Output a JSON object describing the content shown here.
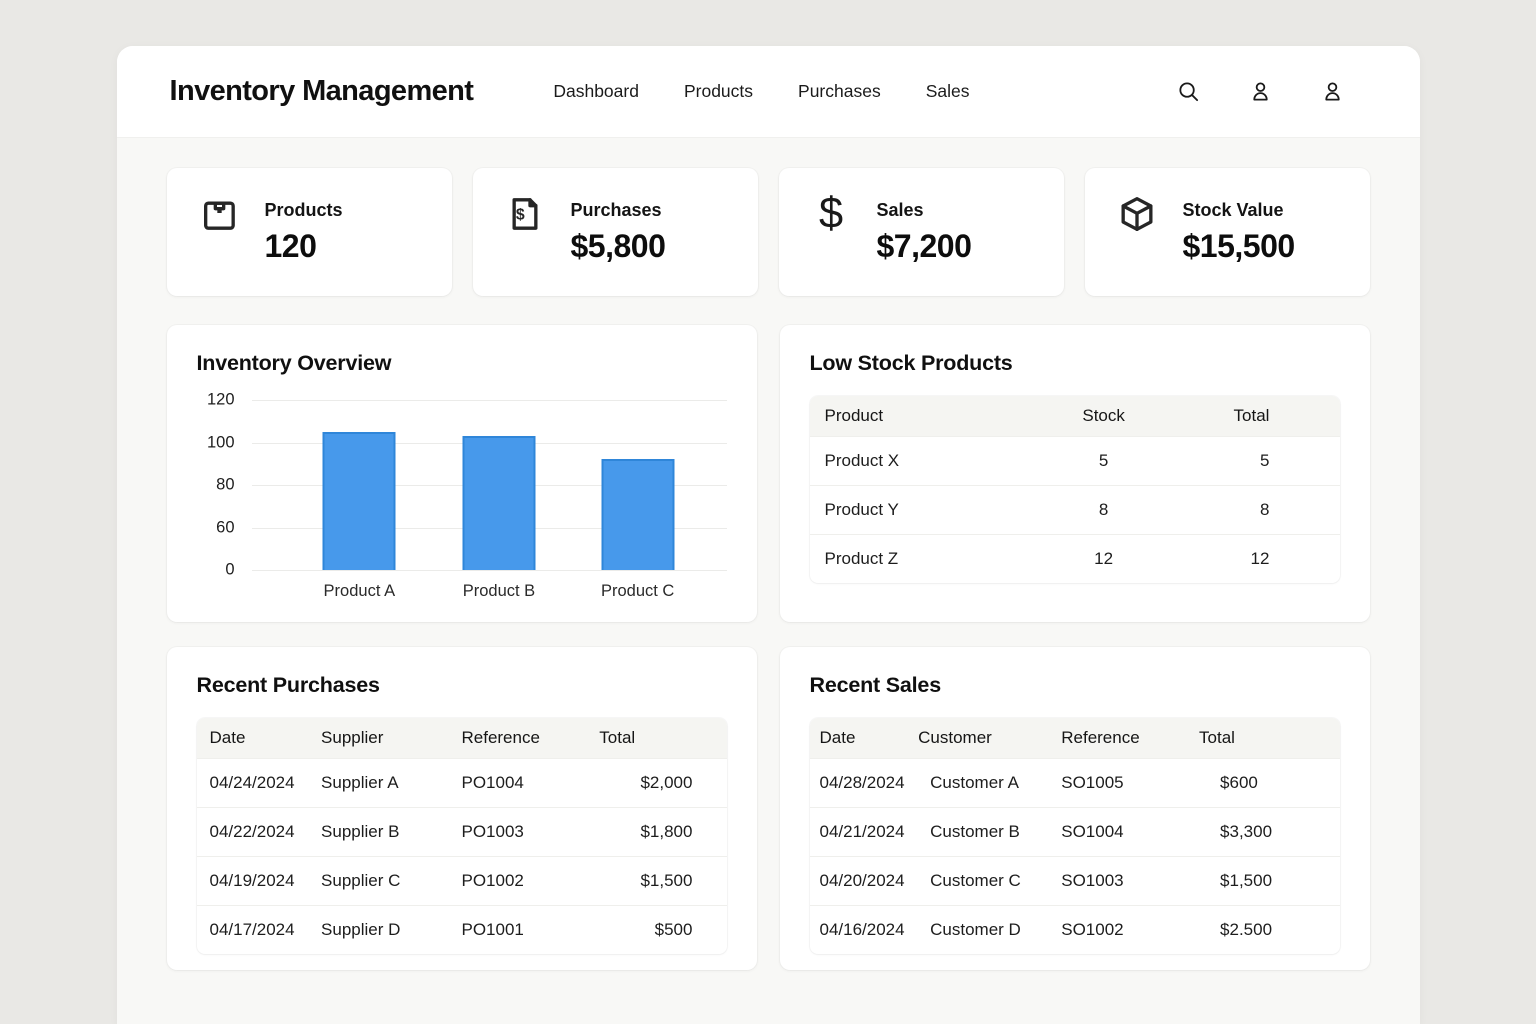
{
  "header": {
    "title": "Inventory Management",
    "nav": [
      {
        "label": "Dashboard"
      },
      {
        "label": "Products"
      },
      {
        "label": "Purchases"
      },
      {
        "label": "Sales"
      }
    ],
    "icons": [
      "search-icon",
      "user-icon",
      "user-icon"
    ]
  },
  "stats": [
    {
      "icon": "package-icon",
      "label": "Products",
      "value": "120"
    },
    {
      "icon": "invoice-icon",
      "label": "Purchases",
      "value": "$5,800"
    },
    {
      "icon": "dollar-icon",
      "label": "Sales",
      "value": "$7,200"
    },
    {
      "icon": "cube-icon",
      "label": "Stock Value",
      "value": "$15,500"
    }
  ],
  "chart_data": {
    "type": "bar",
    "title": "Inventory Overview",
    "categories": [
      "Product A",
      "Product B",
      "Product C"
    ],
    "values": [
      105,
      103,
      92
    ],
    "y_ticks": [
      120,
      100,
      80,
      60,
      0
    ],
    "ylim": [
      0,
      120
    ],
    "grid": true,
    "legend": false,
    "bar_fill": "#4799eb",
    "bar_border": "#2f86d9"
  },
  "sections": {
    "inventory_overview": {
      "title": "Inventory Overview"
    },
    "low_stock": {
      "title": "Low Stock Products",
      "columns": [
        "Product",
        "Stock",
        "Total"
      ],
      "rows": [
        [
          "Product X",
          "5",
          "5"
        ],
        [
          "Product Y",
          "8",
          "8"
        ],
        [
          "Product Z",
          "12",
          "12"
        ]
      ]
    },
    "recent_purchases": {
      "title": "Recent Purchases",
      "columns": [
        "Date",
        "Supplier",
        "Reference",
        "Total"
      ],
      "rows": [
        [
          "04/24/2024",
          "Supplier A",
          "PO1004",
          "$2,000"
        ],
        [
          "04/22/2024",
          "Supplier B",
          "PO1003",
          "$1,800"
        ],
        [
          "04/19/2024",
          "Supplier C",
          "PO1002",
          "$1,500"
        ],
        [
          "04/17/2024",
          "Supplier D",
          "PO1001",
          "$500"
        ]
      ]
    },
    "recent_sales": {
      "title": "Recent Sales",
      "columns": [
        "Date",
        "Customer",
        "Reference",
        "Total"
      ],
      "rows": [
        [
          "04/28/2024",
          "Customer A",
          "SO1005",
          "$600"
        ],
        [
          "04/21/2024",
          "Customer B",
          "SO1004",
          "$3,300"
        ],
        [
          "04/20/2024",
          "Customer C",
          "SO1003",
          "$1,500"
        ],
        [
          "04/16/2024",
          "Customer D",
          "SO1002",
          "$2.500"
        ]
      ]
    }
  }
}
